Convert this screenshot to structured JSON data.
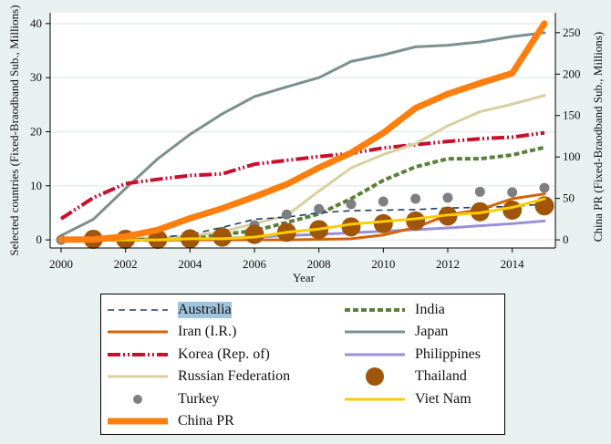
{
  "chart_data": {
    "type": "line",
    "xlabel": "Year",
    "ylabel_left": "Selected countries (Fixed-Braodband Sub., Millions)",
    "ylabel_right": "China PR (Fixed-Braodband Sub., Millions)",
    "x": [
      2000,
      2001,
      2002,
      2003,
      2004,
      2005,
      2006,
      2007,
      2008,
      2009,
      2010,
      2011,
      2012,
      2013,
      2014,
      2015
    ],
    "x_ticks": [
      "2000",
      "2002",
      "2004",
      "2006",
      "2008",
      "2010",
      "2012",
      "2014"
    ],
    "y_left_ticks": [
      "0",
      "10",
      "20",
      "30",
      "40"
    ],
    "y_right_ticks": [
      "0",
      "50",
      "100",
      "150",
      "200",
      "250"
    ],
    "ylim_left": [
      -1.5,
      42
    ],
    "ylim_right": [
      -9.8,
      274
    ],
    "grid": true,
    "legend_position": "bottom",
    "series": [
      {
        "name": "Australia",
        "axis": "left",
        "style": "dash",
        "color": "#1f3a6b",
        "values": [
          0,
          0,
          0.1,
          0.4,
          1.0,
          2.3,
          3.8,
          4.2,
          5.0,
          5.4,
          5.5,
          5.6,
          5.9,
          6.0,
          6.2,
          6.6
        ]
      },
      {
        "name": "Iran (I.R.)",
        "axis": "left",
        "style": "solid",
        "color": "#d6620a",
        "values": [
          0,
          0,
          0,
          0,
          0,
          0,
          0,
          0,
          0.1,
          0.2,
          0.9,
          2.3,
          4.6,
          5.6,
          7.6,
          8.5
        ]
      },
      {
        "name": "Korea (Rep. of)",
        "axis": "left",
        "style": "dashdot",
        "color": "#c8102e",
        "values": [
          3.9,
          7.8,
          10.4,
          11.2,
          11.9,
          12.2,
          14.0,
          14.7,
          15.4,
          16.0,
          17.0,
          17.6,
          18.2,
          18.7,
          19.0,
          19.8
        ]
      },
      {
        "name": "Russian Federation",
        "axis": "left",
        "style": "solid",
        "color": "#d8d0a0",
        "values": [
          0,
          0,
          0.1,
          0.5,
          0.7,
          1.5,
          3.0,
          4.5,
          9.0,
          13.3,
          15.8,
          17.8,
          21.1,
          23.7,
          25.1,
          26.7
        ]
      },
      {
        "name": "Turkey",
        "axis": "left",
        "style": "dot",
        "color": "#7d7f82",
        "values": [
          0,
          0,
          0,
          0.1,
          0.5,
          1.5,
          2.7,
          4.7,
          5.7,
          6.6,
          7.1,
          7.6,
          7.8,
          8.9,
          8.8,
          9.6
        ]
      },
      {
        "name": "China PR",
        "axis": "right",
        "style": "thick",
        "color": "#ff7f0e",
        "values": [
          0.2,
          0.5,
          4,
          12,
          26,
          38,
          52,
          67,
          87,
          105,
          129,
          159,
          176,
          189,
          201,
          261
        ]
      },
      {
        "name": "India",
        "axis": "left",
        "style": "greendash",
        "color": "#5b7f3a",
        "values": [
          0,
          0,
          0,
          0,
          0.1,
          1.0,
          1.7,
          3.2,
          4.8,
          7.6,
          11.0,
          13.5,
          15.0,
          15.0,
          15.7,
          17.1
        ]
      },
      {
        "name": "Japan",
        "axis": "left",
        "style": "solid",
        "color": "#7c9090",
        "values": [
          0.8,
          3.8,
          9.5,
          15.0,
          19.5,
          23.3,
          26.5,
          28.3,
          30.0,
          33.0,
          34.2,
          35.7,
          36.0,
          36.6,
          37.6,
          38.3
        ]
      },
      {
        "name": "Philippines",
        "axis": "left",
        "style": "solid",
        "color": "#9a8fd8",
        "values": [
          0,
          0,
          0,
          0,
          0.1,
          0.3,
          0.5,
          0.8,
          1.0,
          1.3,
          1.6,
          1.9,
          2.2,
          2.6,
          3.0,
          3.5
        ]
      },
      {
        "name": "Thailand",
        "axis": "left",
        "style": "bigdot",
        "color": "#a0560a",
        "values": [
          null,
          0.1,
          0.1,
          0.1,
          0.2,
          0.5,
          1.0,
          1.4,
          1.9,
          2.4,
          3.0,
          3.5,
          4.4,
          5.2,
          5.5,
          6.3
        ]
      },
      {
        "name": "Viet Nam",
        "axis": "left",
        "style": "solid",
        "color": "#ffcc00",
        "values": [
          0,
          0,
          0,
          0,
          0.2,
          0.2,
          0.5,
          1.4,
          2.0,
          2.9,
          3.4,
          3.9,
          4.6,
          5.0,
          6.0,
          7.6
        ]
      }
    ]
  },
  "legend": {
    "items": [
      "Australia",
      "Iran (I.R.)",
      "Korea (Rep. of)",
      "Russian Federation",
      "Turkey",
      "China PR",
      "India",
      "Japan",
      "Philippines",
      "Thailand",
      "Viet Nam"
    ]
  }
}
